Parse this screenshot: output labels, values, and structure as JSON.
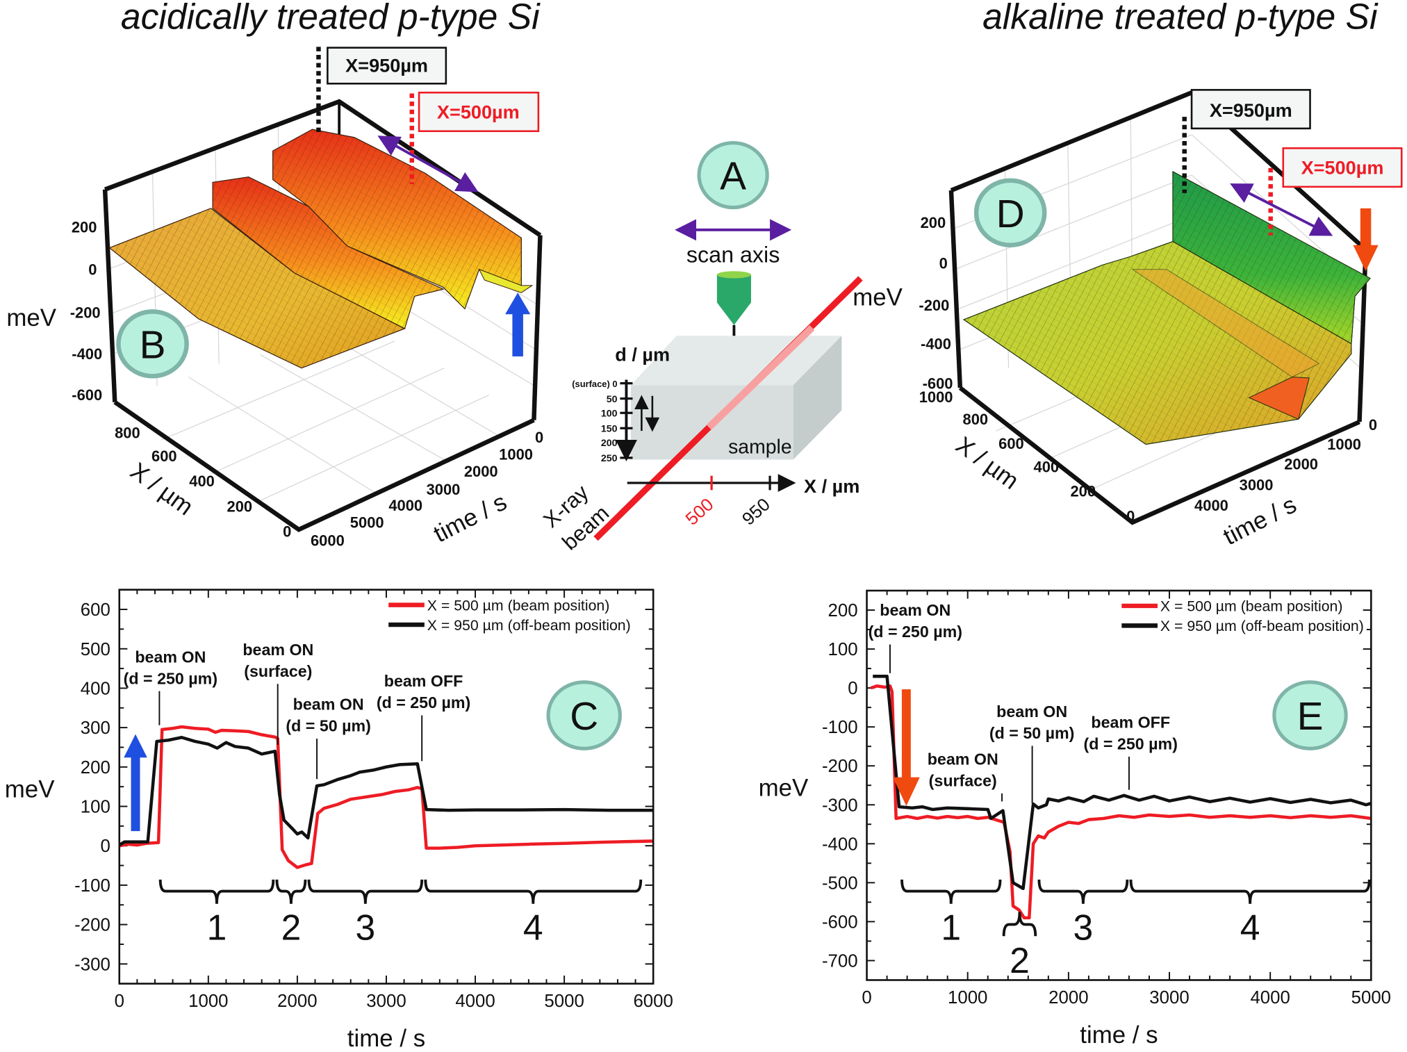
{
  "titles": {
    "left": "acidically treated p-type Si",
    "right": "alkaline treated p-type Si"
  },
  "colors": {
    "beam_red": "#ee1c24",
    "off_beam_black": "#111111",
    "label_circle_fill": "#b8f0de",
    "label_circle_stroke": "#7fb5a8",
    "scan_arrow": "#5a1fa0",
    "blue_arrow": "#1f4fe0",
    "orange_arrow": "#f04a10",
    "tip_green": "#2aa86a"
  },
  "panel_a": {
    "label": "A",
    "scan_axis": "scan axis",
    "depth_axis_label": "d / µm",
    "depth_ticks": [
      "(surface) 0",
      "50",
      "100",
      "150",
      "200",
      "250"
    ],
    "x_axis_label": "X / µm",
    "x_ticks": [
      "500",
      "950"
    ],
    "beam_label_1": "X-ray",
    "beam_label_2": "beam",
    "sample_label": "sample",
    "mev_label": "meV"
  },
  "panel_b": {
    "label": "B",
    "z_label": "meV",
    "z_ticks": [
      "200",
      "0",
      "-200",
      "-400",
      "-600"
    ],
    "x_label": "X / µm",
    "x_ticks": [
      "800",
      "600",
      "400",
      "200",
      "0"
    ],
    "t_label": "time / s",
    "t_ticks": [
      "0",
      "1000",
      "2000",
      "3000",
      "4000",
      "5000",
      "6000"
    ],
    "marker_off_beam": "X=950µm",
    "marker_beam": "X=500µm",
    "arrow": "up"
  },
  "panel_d": {
    "label": "D",
    "z_ticks": [
      "200",
      "0",
      "-200",
      "-400",
      "-600",
      "1000"
    ],
    "x_label": "X / µm",
    "x_ticks": [
      "800",
      "600",
      "400",
      "200",
      "0"
    ],
    "t_label": "time / s",
    "t_ticks": [
      "0",
      "1000",
      "2000",
      "3000",
      "4000"
    ],
    "marker_off_beam": "X=950µm",
    "marker_beam": "X=500µm",
    "arrow": "down"
  },
  "chart_data": [
    {
      "type": "line",
      "panel_label": "C",
      "xlabel": "time / s",
      "ylabel": "meV",
      "xlim": [
        0,
        6000
      ],
      "ylim": [
        -350,
        650
      ],
      "xticks": [
        "0",
        "1000",
        "2000",
        "3000",
        "4000",
        "5000",
        "6000"
      ],
      "yticks": [
        "-300",
        "-200",
        "-100",
        "0",
        "100",
        "200",
        "300",
        "400",
        "500",
        "600"
      ],
      "grid": false,
      "legend": "top-right",
      "arrow": "up",
      "series": [
        {
          "name": "X = 500 µm (beam position)",
          "color": "#ee1c24",
          "points": [
            [
              0,
              0
            ],
            [
              100,
              4
            ],
            [
              200,
              2
            ],
            [
              300,
              6
            ],
            [
              440,
              8
            ],
            [
              480,
              295
            ],
            [
              600,
              298
            ],
            [
              700,
              302
            ],
            [
              850,
              298
            ],
            [
              1000,
              296
            ],
            [
              1080,
              288
            ],
            [
              1150,
              293
            ],
            [
              1300,
              292
            ],
            [
              1450,
              290
            ],
            [
              1600,
              282
            ],
            [
              1750,
              276
            ],
            [
              1780,
              272
            ],
            [
              1830,
              -10
            ],
            [
              1900,
              -38
            ],
            [
              2000,
              -55
            ],
            [
              2100,
              -48
            ],
            [
              2160,
              -45
            ],
            [
              2230,
              82
            ],
            [
              2300,
              95
            ],
            [
              2450,
              105
            ],
            [
              2600,
              118
            ],
            [
              2800,
              125
            ],
            [
              2950,
              130
            ],
            [
              3100,
              138
            ],
            [
              3250,
              142
            ],
            [
              3350,
              148
            ],
            [
              3400,
              145
            ],
            [
              3450,
              -6
            ],
            [
              3600,
              -6
            ],
            [
              3800,
              -4
            ],
            [
              4000,
              0
            ],
            [
              4300,
              2
            ],
            [
              4600,
              4
            ],
            [
              5000,
              6
            ],
            [
              5400,
              9
            ],
            [
              5800,
              11
            ],
            [
              6000,
              12
            ]
          ]
        },
        {
          "name": "X = 950 µm (off-beam position)",
          "color": "#111111",
          "points": [
            [
              0,
              2
            ],
            [
              60,
              10
            ],
            [
              320,
              10
            ],
            [
              420,
              265
            ],
            [
              550,
              268
            ],
            [
              700,
              275
            ],
            [
              850,
              265
            ],
            [
              1000,
              258
            ],
            [
              1100,
              248
            ],
            [
              1200,
              262
            ],
            [
              1300,
              252
            ],
            [
              1450,
              248
            ],
            [
              1600,
              233
            ],
            [
              1750,
              240
            ],
            [
              1800,
              130
            ],
            [
              1850,
              65
            ],
            [
              1950,
              42
            ],
            [
              2000,
              30
            ],
            [
              2050,
              35
            ],
            [
              2120,
              20
            ],
            [
              2220,
              152
            ],
            [
              2300,
              155
            ],
            [
              2450,
              168
            ],
            [
              2600,
              178
            ],
            [
              2700,
              187
            ],
            [
              2850,
              192
            ],
            [
              3000,
              200
            ],
            [
              3150,
              206
            ],
            [
              3350,
              208
            ],
            [
              3450,
              92
            ],
            [
              3700,
              90
            ],
            [
              4000,
              91
            ],
            [
              4500,
              91
            ],
            [
              5000,
              92
            ],
            [
              5500,
              90
            ],
            [
              6000,
              90
            ]
          ]
        }
      ],
      "annotations": [
        {
          "line1": "beam ON",
          "line2": "(d = 250 µm)",
          "time": 450
        },
        {
          "line1": "beam ON",
          "line2": "(surface)",
          "time": 1780
        },
        {
          "line1": "beam ON",
          "line2": "(d = 50 µm)",
          "time": 2220
        },
        {
          "line1": "beam OFF",
          "line2": "(d = 250 µm)",
          "time": 3400
        }
      ],
      "phases": [
        {
          "label": "1",
          "from": 440,
          "to": 1750
        },
        {
          "label": "2",
          "from": 1750,
          "to": 2110
        },
        {
          "label": "3",
          "from": 2110,
          "to": 3420
        },
        {
          "label": "4",
          "from": 3420,
          "to": 5880
        }
      ]
    },
    {
      "type": "line",
      "panel_label": "E",
      "xlabel": "time / s",
      "ylabel": "meV",
      "xlim": [
        0,
        5000
      ],
      "ylim": [
        -750,
        250
      ],
      "xticks": [
        "0",
        "1000",
        "2000",
        "3000",
        "4000",
        "5000"
      ],
      "yticks": [
        "-700",
        "-600",
        "-500",
        "-400",
        "-300",
        "-200",
        "-100",
        "0",
        "100",
        "200"
      ],
      "grid": false,
      "legend": "top-right",
      "arrow": "down",
      "series": [
        {
          "name": "X = 500 µm (beam position)",
          "color": "#ee1c24",
          "points": [
            [
              40,
              0
            ],
            [
              100,
              5
            ],
            [
              180,
              2
            ],
            [
              230,
              5
            ],
            [
              250,
              -10
            ],
            [
              290,
              -335
            ],
            [
              400,
              -330
            ],
            [
              500,
              -335
            ],
            [
              600,
              -330
            ],
            [
              700,
              -334
            ],
            [
              800,
              -330
            ],
            [
              900,
              -333
            ],
            [
              1000,
              -330
            ],
            [
              1100,
              -335
            ],
            [
              1200,
              -332
            ],
            [
              1300,
              -340
            ],
            [
              1360,
              -345
            ],
            [
              1420,
              -420
            ],
            [
              1450,
              -560
            ],
            [
              1510,
              -570
            ],
            [
              1560,
              -590
            ],
            [
              1610,
              -590
            ],
            [
              1650,
              -400
            ],
            [
              1700,
              -380
            ],
            [
              1760,
              -385
            ],
            [
              1800,
              -370
            ],
            [
              1900,
              -355
            ],
            [
              2000,
              -345
            ],
            [
              2100,
              -348
            ],
            [
              2200,
              -338
            ],
            [
              2350,
              -335
            ],
            [
              2500,
              -328
            ],
            [
              2650,
              -332
            ],
            [
              2800,
              -326
            ],
            [
              3000,
              -330
            ],
            [
              3200,
              -326
            ],
            [
              3400,
              -332
            ],
            [
              3600,
              -328
            ],
            [
              3800,
              -332
            ],
            [
              4000,
              -328
            ],
            [
              4200,
              -333
            ],
            [
              4400,
              -328
            ],
            [
              4600,
              -332
            ],
            [
              4800,
              -328
            ],
            [
              5000,
              -335
            ]
          ]
        },
        {
          "name": "X = 950 µm (off-beam position)",
          "color": "#111111",
          "points": [
            [
              60,
              30
            ],
            [
              200,
              30
            ],
            [
              320,
              -305
            ],
            [
              450,
              -308
            ],
            [
              550,
              -305
            ],
            [
              650,
              -312
            ],
            [
              800,
              -308
            ],
            [
              1000,
              -310
            ],
            [
              1200,
              -312
            ],
            [
              1230,
              -335
            ],
            [
              1350,
              -315
            ],
            [
              1450,
              -500
            ],
            [
              1550,
              -515
            ],
            [
              1650,
              -298
            ],
            [
              1700,
              -308
            ],
            [
              1780,
              -300
            ],
            [
              1800,
              -285
            ],
            [
              1900,
              -290
            ],
            [
              2000,
              -282
            ],
            [
              2150,
              -292
            ],
            [
              2250,
              -278
            ],
            [
              2400,
              -288
            ],
            [
              2550,
              -276
            ],
            [
              2700,
              -288
            ],
            [
              2850,
              -278
            ],
            [
              3000,
              -290
            ],
            [
              3200,
              -280
            ],
            [
              3400,
              -292
            ],
            [
              3600,
              -283
            ],
            [
              3800,
              -293
            ],
            [
              4000,
              -284
            ],
            [
              4200,
              -294
            ],
            [
              4400,
              -286
            ],
            [
              4600,
              -295
            ],
            [
              4800,
              -288
            ],
            [
              4950,
              -300
            ],
            [
              5000,
              -296
            ]
          ]
        }
      ],
      "annotations": [
        {
          "line1": "beam ON",
          "line2": "(d = 250 µm)",
          "time": 230
        },
        {
          "line1": "beam ON",
          "line2": "(surface)",
          "time": 1340
        },
        {
          "line1": "beam ON",
          "line2": "(d = 50 µm)",
          "time": 1640
        },
        {
          "line1": "beam OFF",
          "line2": "(d = 250 µm)",
          "time": 2600
        }
      ],
      "phases": [
        {
          "label": "1",
          "from": 330,
          "to": 1340
        },
        {
          "label": "2",
          "from": 1340,
          "to": 1690
        },
        {
          "label": "3",
          "from": 1690,
          "to": 2600
        },
        {
          "label": "4",
          "from": 2600,
          "to": 5000
        }
      ]
    }
  ]
}
